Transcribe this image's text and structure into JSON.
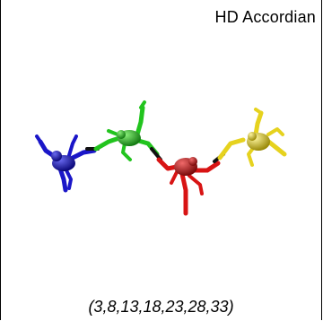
{
  "title": "HD Accordian",
  "caption": "(3,8,13,18,23,28,33)",
  "figure_colors": {
    "blue": "#1a16c8",
    "green": "#22c41e",
    "red": "#d81414",
    "yellow": "#e6d21e",
    "shadow": "#111111"
  }
}
